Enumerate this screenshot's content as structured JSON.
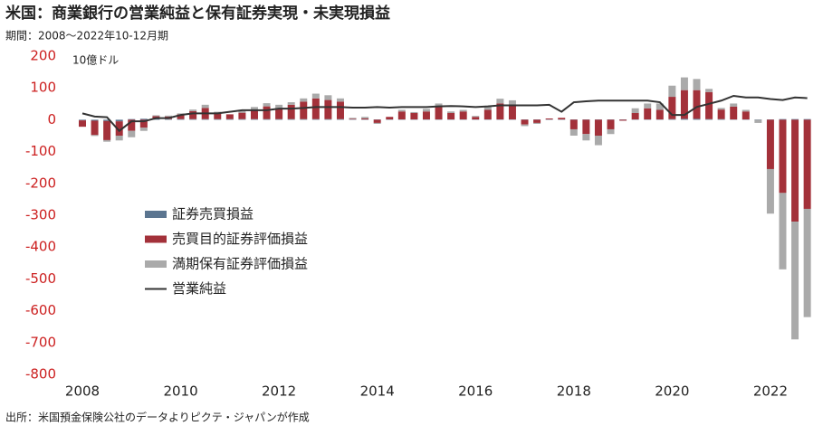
{
  "chart_data": {
    "type": "stacked-bar-line",
    "title": "米国：商業銀行の営業純益と保有証券実現・未実現損益",
    "subtitle": "期間：2008～2022年10-12月期",
    "y_unit": "10億ドル",
    "source": "出所：米国預金保険公社のデータよりピクテ・ジャパンが作成",
    "categories": [
      "2008",
      null,
      null,
      null,
      null,
      null,
      null,
      null,
      "2010",
      null,
      null,
      null,
      null,
      null,
      null,
      null,
      "2012",
      null,
      null,
      null,
      null,
      null,
      null,
      null,
      "2014",
      null,
      null,
      null,
      null,
      null,
      null,
      null,
      "2016",
      null,
      null,
      null,
      null,
      null,
      null,
      null,
      "2018",
      null,
      null,
      null,
      null,
      null,
      null,
      null,
      "2020",
      null,
      null,
      null,
      null,
      null,
      null,
      null,
      "2022",
      null,
      null,
      null
    ],
    "series": [
      {
        "name": "証券売買損益",
        "color": "#5b7590",
        "kind": "bar",
        "values": [
          -2,
          -3,
          -4,
          -5,
          2,
          3,
          3,
          2,
          2,
          2,
          2,
          2,
          2,
          2,
          2,
          2,
          2,
          2,
          2,
          2,
          2,
          2,
          1,
          1,
          1,
          1,
          1,
          1,
          1,
          1,
          1,
          1,
          1,
          1,
          1,
          1,
          1,
          1,
          1,
          1,
          1,
          1,
          1,
          1,
          1,
          1,
          1,
          1,
          2,
          3,
          3,
          2,
          2,
          1,
          1,
          1,
          1,
          2,
          2,
          2
        ]
      },
      {
        "name": "売買目的証券評価損益",
        "color": "#a3313a",
        "kind": "bar",
        "values": [
          -20,
          -45,
          -60,
          -45,
          -35,
          -25,
          8,
          8,
          15,
          25,
          35,
          20,
          15,
          20,
          30,
          40,
          35,
          45,
          55,
          65,
          60,
          55,
          2,
          3,
          -10,
          8,
          25,
          20,
          25,
          40,
          20,
          25,
          8,
          30,
          50,
          45,
          -15,
          -10,
          3,
          5,
          -30,
          -45,
          -50,
          -30,
          -3,
          20,
          35,
          30,
          70,
          90,
          90,
          85,
          30,
          40,
          25,
          0,
          -155,
          -230,
          -320,
          -280
        ]
      },
      {
        "name": "満期保有証券評価損益",
        "color": "#aaaaaa",
        "kind": "bar",
        "values": [
          0,
          -3,
          -5,
          -15,
          -20,
          -10,
          3,
          3,
          3,
          5,
          10,
          3,
          0,
          5,
          8,
          10,
          10,
          8,
          10,
          15,
          15,
          10,
          3,
          5,
          -3,
          0,
          5,
          3,
          8,
          10,
          5,
          5,
          3,
          10,
          15,
          15,
          -5,
          -3,
          0,
          0,
          -20,
          -20,
          -30,
          -15,
          0,
          15,
          15,
          20,
          35,
          40,
          35,
          10,
          5,
          10,
          5,
          -10,
          -140,
          -240,
          -370,
          -340
        ]
      },
      {
        "name": "営業純益",
        "color": "#333333",
        "kind": "line",
        "values": [
          20,
          10,
          8,
          -35,
          -5,
          -5,
          5,
          5,
          15,
          20,
          20,
          20,
          25,
          30,
          30,
          30,
          35,
          35,
          37,
          40,
          40,
          40,
          38,
          38,
          40,
          38,
          40,
          40,
          40,
          42,
          43,
          42,
          40,
          42,
          45,
          45,
          45,
          45,
          47,
          25,
          55,
          58,
          60,
          60,
          60,
          60,
          60,
          55,
          15,
          15,
          40,
          50,
          60,
          75,
          70,
          70,
          65,
          62,
          70,
          68
        ]
      }
    ],
    "ylim": [
      -800,
      200
    ],
    "yticks": [
      -800,
      -700,
      -600,
      -500,
      -400,
      -300,
      -200,
      -100,
      0,
      100,
      200
    ],
    "ytick_color": "#cc1f1f",
    "grid": false,
    "legend": "left"
  }
}
